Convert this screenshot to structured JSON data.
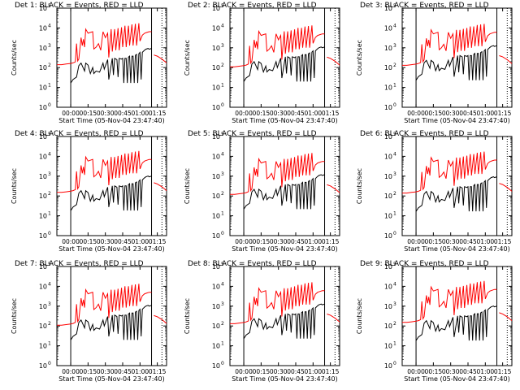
{
  "figure": {
    "xlabel": "Start Time (05-Nov-04 23:47:40)",
    "ylabel": "Counts/sec",
    "x_tick_labels": [
      "00:00",
      "00:15",
      "00:30",
      "00:45",
      "01:00",
      "01:15"
    ],
    "y_tick_exponents": [
      0,
      1,
      2,
      3,
      4,
      5
    ],
    "y_scale": "log",
    "ylim": [
      1,
      100000
    ],
    "colors": {
      "events": "#000000",
      "lld": "#ff0000",
      "axes": "#000000"
    }
  },
  "panels": [
    {
      "title": "Det 1: BLACK = Events, RED = LLD"
    },
    {
      "title": "Det 2: BLACK = Events, RED = LLD"
    },
    {
      "title": "Det 3: BLACK = Events, RED = LLD"
    },
    {
      "title": "Det 4: BLACK = Events, RED = LLD"
    },
    {
      "title": "Det 5: BLACK = Events, RED = LLD"
    },
    {
      "title": "Det 6: BLACK = Events, RED = LLD"
    },
    {
      "title": "Det 7: BLACK = Events, RED = LLD"
    },
    {
      "title": "Det 8: BLACK = Events, RED = LLD"
    },
    {
      "title": "Det 9: BLACK = Events, RED = LLD"
    }
  ],
  "chart_data": {
    "type": "line",
    "layout": "3x3 grid of panels",
    "xlabel": "Start Time (05-Nov-04 23:47:40)",
    "ylabel": "Counts/sec",
    "yscale": "log",
    "ylim": [
      1,
      100000
    ],
    "x_unit": "minutes",
    "xlim": [
      -12,
      83
    ],
    "x_ticks_minutes": [
      0,
      15,
      30,
      45,
      60,
      75
    ],
    "x_tick_labels": [
      "00:00",
      "00:15",
      "00:30",
      "00:45",
      "01:00",
      "01:15"
    ],
    "vertical_markers_minutes": [
      {
        "x": 0,
        "style": "solid"
      },
      {
        "x": 70,
        "style": "solid"
      },
      {
        "x": 79,
        "style": "dotted"
      }
    ],
    "series": [
      {
        "name": "Events",
        "color": "#000000",
        "x": [
          0,
          2,
          5,
          7,
          9,
          12,
          13,
          15,
          17,
          19,
          20,
          22,
          25,
          28,
          29,
          32,
          33,
          36,
          37,
          38,
          40,
          41,
          42,
          44,
          45,
          46,
          47,
          48,
          49,
          50,
          51,
          52,
          53,
          54,
          55,
          56,
          57,
          58,
          59,
          60,
          61,
          62,
          63,
          64,
          65,
          67,
          68,
          70,
          72
        ],
        "y": [
          20,
          30,
          40,
          150,
          200,
          80,
          200,
          160,
          60,
          120,
          60,
          80,
          70,
          200,
          100,
          300,
          30,
          350,
          50,
          350,
          300,
          40,
          350,
          320,
          350,
          20,
          350,
          350,
          20,
          400,
          450,
          20,
          450,
          450,
          20,
          500,
          550,
          20,
          600,
          700,
          30,
          700,
          800,
          900,
          1000,
          1100,
          1000,
          1100,
          300
        ],
        "gap_after_x": 70
      },
      {
        "name": "LLD",
        "color": "#ff0000",
        "x": [
          -12,
          -8,
          -4,
          0,
          2,
          4,
          5,
          6,
          7,
          9,
          10,
          11,
          12,
          13,
          15,
          17,
          19,
          20,
          22,
          24,
          26,
          28,
          30,
          32,
          33,
          35,
          36,
          38,
          39,
          41,
          42,
          44,
          45,
          47,
          48,
          50,
          51,
          53,
          54,
          56,
          57,
          59,
          60,
          62,
          64,
          66,
          68,
          70,
          72,
          75,
          79,
          83
        ],
        "y": [
          130,
          130,
          140,
          150,
          160,
          180,
          1500,
          200,
          250,
          3000,
          1200,
          2500,
          1000,
          8000,
          5000,
          5500,
          6000,
          800,
          1000,
          1500,
          700,
          6000,
          3000,
          5000,
          300,
          8000,
          600,
          8000,
          700,
          9000,
          700,
          10000,
          1000,
          12000,
          1000,
          12000,
          1200,
          14000,
          1200,
          15000,
          1200,
          16000,
          2000,
          4000,
          5000,
          5500,
          6000,
          6000,
          400,
          350,
          250,
          160
        ],
        "gap_after_x": 70
      }
    ]
  }
}
